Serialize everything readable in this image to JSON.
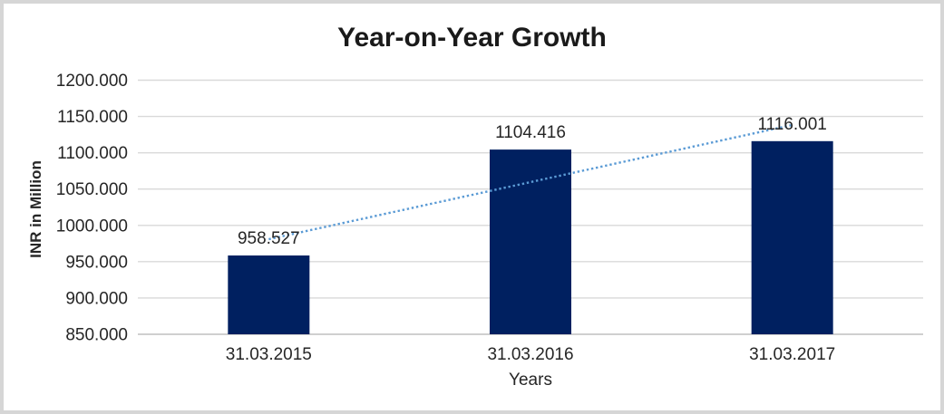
{
  "chart_data": {
    "type": "bar",
    "title": "Year-on-Year Growth",
    "xlabel": "Years",
    "ylabel": "INR in Million",
    "categories": [
      "31.03.2015",
      "31.03.2016",
      "31.03.2017"
    ],
    "values": [
      958.527,
      1104.416,
      1116.001
    ],
    "value_labels": [
      "958.527",
      "1104.416",
      "1116.001"
    ],
    "ylim": [
      850,
      1200
    ],
    "ytick_step": 50,
    "yticks": [
      1200,
      1150,
      1100,
      1050,
      1000,
      950,
      900,
      850
    ],
    "ytick_labels": [
      "1200.000",
      "1150.000",
      "1100.000",
      "1050.000",
      "1000.000",
      "950.000",
      "900.000",
      "850.000"
    ],
    "grid": true,
    "legend": "none",
    "trendline": {
      "type": "linear",
      "style": "dotted",
      "start_value": 980.9,
      "end_value": 1138.3
    },
    "colors": {
      "bar": "#002060",
      "trendline": "#5b9bd5",
      "gridline": "#d9d9d9",
      "axis_line": "#bfbfbf",
      "label_text": "#262626",
      "title_text": "#1a1a1a",
      "frame_border": "#d6d6d6",
      "background": "#ffffff"
    }
  }
}
